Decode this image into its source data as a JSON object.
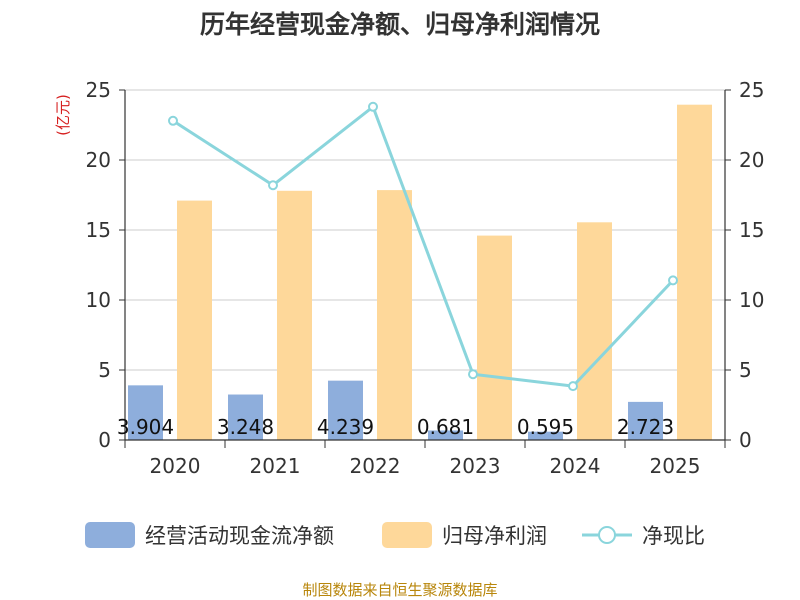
{
  "chart_data": {
    "type": "bar",
    "title": "历年经营现金净额、归母净利润情况",
    "categories": [
      "2020",
      "2021",
      "2022",
      "2023",
      "2024",
      "2025"
    ],
    "series": [
      {
        "name": "经营活动现金流净额",
        "type": "bar",
        "axis": "left",
        "color": "#8eaedc",
        "values": [
          3.904,
          3.248,
          4.239,
          0.681,
          0.595,
          2.723
        ],
        "labels": [
          "3.904",
          "3.248",
          "4.239",
          "0.681",
          "0.595",
          "2.723"
        ]
      },
      {
        "name": "归母净利润",
        "type": "bar",
        "axis": "left",
        "color": "#fed89a",
        "values": [
          17.1,
          17.8,
          17.85,
          14.6,
          15.55,
          23.95
        ]
      },
      {
        "name": "净现比",
        "type": "line",
        "axis": "right",
        "color": "#8ad5dc",
        "values": [
          22.8,
          18.2,
          23.8,
          4.7,
          3.85,
          11.4
        ]
      }
    ],
    "yleft": {
      "unit": "(亿元)",
      "ylim": [
        0,
        25
      ],
      "ticks": [
        "0",
        "5",
        "10",
        "15",
        "20",
        "25"
      ]
    },
    "yright": {
      "ylim": [
        0,
        25
      ],
      "ticks": [
        "0",
        "5",
        "10",
        "15",
        "20",
        "25"
      ]
    },
    "grid": true,
    "legend_position": "bottom"
  },
  "source_text": "制图数据来自恒生聚源数据库"
}
